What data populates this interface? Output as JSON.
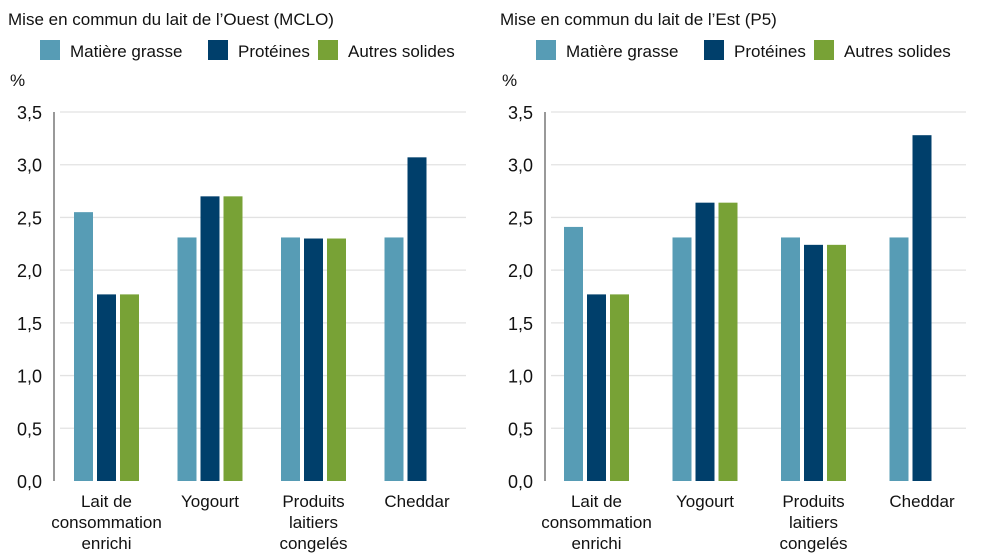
{
  "chart_data": [
    {
      "type": "bar",
      "title": "Mise en commun du lait de l’Ouest (MCLO)",
      "ylabel": "%",
      "ylim": [
        0,
        3.5
      ],
      "yticks": [
        "0,0",
        "0,5",
        "1,0",
        "1,5",
        "2,0",
        "2,5",
        "3,0",
        "3,5"
      ],
      "grid": true,
      "legend": "top",
      "categories": [
        [
          "Lait de",
          "consommation",
          "enrichi"
        ],
        [
          "Yogourt"
        ],
        [
          "Produits",
          "laitiers",
          "congelés"
        ],
        [
          "Cheddar"
        ]
      ],
      "series": [
        {
          "name": "Matière grasse",
          "color": "#579cb5",
          "values": [
            2.55,
            2.31,
            2.31,
            2.31
          ]
        },
        {
          "name": "Protéines",
          "color": "#003f6b",
          "values": [
            1.77,
            2.7,
            2.3,
            3.07
          ]
        },
        {
          "name": "Autres solides",
          "color": "#78a236",
          "values": [
            1.77,
            2.7,
            2.3,
            null
          ]
        }
      ]
    },
    {
      "type": "bar",
      "title": "Mise en commun du lait de l’Est (P5)",
      "ylabel": "%",
      "ylim": [
        0,
        3.5
      ],
      "yticks": [
        "0,0",
        "0,5",
        "1,0",
        "1,5",
        "2,0",
        "2,5",
        "3,0",
        "3,5"
      ],
      "grid": true,
      "legend": "top",
      "categories": [
        [
          "Lait de",
          "consommation",
          "enrichi"
        ],
        [
          "Yogourt"
        ],
        [
          "Produits",
          "laitiers",
          "congelés"
        ],
        [
          "Cheddar"
        ]
      ],
      "series": [
        {
          "name": "Matière grasse",
          "color": "#579cb5",
          "values": [
            2.41,
            2.31,
            2.31,
            2.31
          ]
        },
        {
          "name": "Protéines",
          "color": "#003f6b",
          "values": [
            1.77,
            2.64,
            2.24,
            3.28
          ]
        },
        {
          "name": "Autres solides",
          "color": "#78a236",
          "values": [
            1.77,
            2.64,
            2.24,
            null
          ]
        }
      ]
    }
  ]
}
